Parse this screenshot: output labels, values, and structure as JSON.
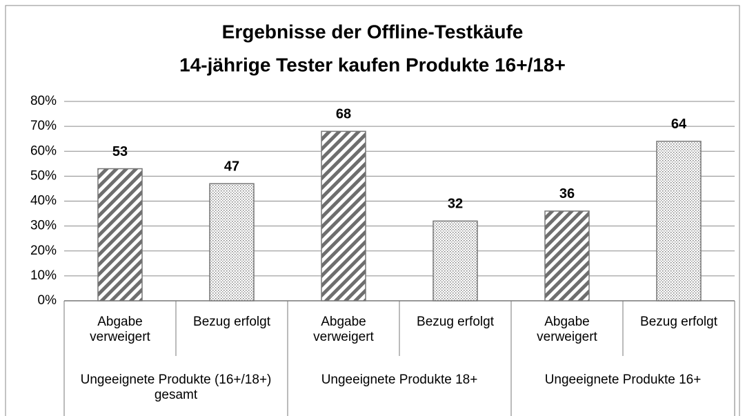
{
  "chart_data": {
    "type": "bar",
    "title": "Ergebnisse der Offline-Testkäufe",
    "subtitle": "14-jährige Tester kaufen Produkte 16+/18+",
    "categories": [
      "Abgabe verweigert",
      "Bezug erfolgt",
      "Abgabe verweigert",
      "Bezug erfolgt",
      "Abgabe verweigert",
      "Bezug erfolgt"
    ],
    "groups": [
      "Ungeeignete Produkte (16+/18+) gesamt",
      "Ungeeignete Produkte  18+",
      "Ungeeignete Produkte  16+"
    ],
    "values": [
      53,
      47,
      68,
      32,
      36,
      64
    ],
    "bar_patterns": [
      "hatch",
      "dots",
      "hatch",
      "dots",
      "hatch",
      "dots"
    ],
    "ylim": [
      0,
      80
    ],
    "yticks": [
      {
        "value": 0,
        "label": "0%"
      },
      {
        "value": 10,
        "label": "10%"
      },
      {
        "value": 20,
        "label": "20%"
      },
      {
        "value": 30,
        "label": "30%"
      },
      {
        "value": 40,
        "label": "40%"
      },
      {
        "value": 50,
        "label": "50%"
      },
      {
        "value": 60,
        "label": "60%"
      },
      {
        "value": 70,
        "label": "70%"
      },
      {
        "value": 80,
        "label": "80%"
      }
    ],
    "grid": true
  }
}
